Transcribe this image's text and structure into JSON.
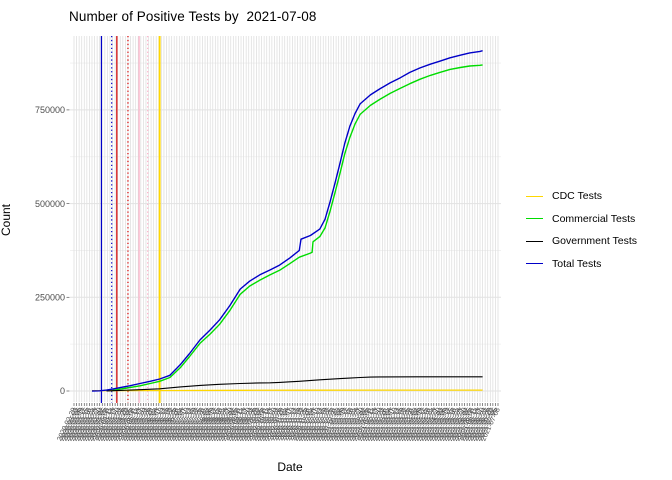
{
  "chart_data": {
    "type": "line",
    "title": "Number of Positive Tests by  2021-07-08",
    "xlabel": "Date",
    "ylabel": "Count",
    "y_ticks": [
      0,
      250000,
      500000,
      750000
    ],
    "y_tick_labels": [
      "0",
      "250000",
      "500000",
      "750000"
    ],
    "y_minor_ticks": [
      125000,
      375000,
      625000,
      875000
    ],
    "ylim": [
      -30000,
      945000
    ],
    "grid": true,
    "legend_position": "right",
    "x_axis": {
      "tick_start_date": "2020-02-29",
      "tick_end_date": "2021-07-08",
      "tick_step_days": 3,
      "tick_label_format": "YYYY-MM-DD",
      "tick_label_angle_deg": 65,
      "tick_labels_overlap": true
    },
    "series": [
      {
        "name": "CDC Tests",
        "color": "#FFD700",
        "width": 1.3,
        "points": [
          [
            21,
            700
          ],
          [
            60,
            1000
          ],
          [
            120,
            1400
          ],
          [
            200,
            1800
          ],
          [
            280,
            2100
          ],
          [
            360,
            2400
          ],
          [
            477,
            2500
          ]
        ]
      },
      {
        "name": "Commercial Tests",
        "color": "#00DC00",
        "width": 1.4,
        "points": [
          [
            45,
            1500
          ],
          [
            54,
            5000
          ],
          [
            65,
            9000
          ],
          [
            77,
            14000
          ],
          [
            89,
            20000
          ],
          [
            100,
            26000
          ],
          [
            112,
            36000
          ],
          [
            124,
            62000
          ],
          [
            135,
            92000
          ],
          [
            147,
            127000
          ],
          [
            159,
            152000
          ],
          [
            170,
            178000
          ],
          [
            182,
            215000
          ],
          [
            194,
            258000
          ],
          [
            205,
            280000
          ],
          [
            217,
            296000
          ],
          [
            229,
            310000
          ],
          [
            240,
            322000
          ],
          [
            252,
            340000
          ],
          [
            263,
            357000
          ],
          [
            276,
            368000
          ],
          [
            278,
            370000
          ],
          [
            279,
            398000
          ],
          [
            287,
            412000
          ],
          [
            293,
            435000
          ],
          [
            299,
            480000
          ],
          [
            305,
            532000
          ],
          [
            311,
            585000
          ],
          [
            316,
            632000
          ],
          [
            322,
            676000
          ],
          [
            328,
            712000
          ],
          [
            334,
            738000
          ],
          [
            346,
            762000
          ],
          [
            357,
            778000
          ],
          [
            369,
            794000
          ],
          [
            381,
            808000
          ],
          [
            392,
            820000
          ],
          [
            404,
            832000
          ],
          [
            416,
            842000
          ],
          [
            427,
            850000
          ],
          [
            439,
            858000
          ],
          [
            451,
            863000
          ],
          [
            462,
            867000
          ],
          [
            474,
            869000
          ],
          [
            477,
            870000
          ]
        ]
      },
      {
        "name": "Government Tests",
        "color": "#000000",
        "width": 1.1,
        "points": [
          [
            38,
            300
          ],
          [
            54,
            1500
          ],
          [
            77,
            3500
          ],
          [
            100,
            6000
          ],
          [
            124,
            11000
          ],
          [
            147,
            15000
          ],
          [
            170,
            18000
          ],
          [
            194,
            20000
          ],
          [
            217,
            21500
          ],
          [
            229,
            22000
          ],
          [
            240,
            23000
          ],
          [
            252,
            24500
          ],
          [
            263,
            26000
          ],
          [
            287,
            30000
          ],
          [
            299,
            31500
          ],
          [
            311,
            33000
          ],
          [
            322,
            34500
          ],
          [
            334,
            36000
          ],
          [
            346,
            37000
          ],
          [
            357,
            37500
          ],
          [
            400,
            37800
          ],
          [
            477,
            38000
          ]
        ]
      },
      {
        "name": "Total Tests",
        "color": "#0000C8",
        "width": 1.4,
        "points": [
          [
            21,
            0
          ],
          [
            30,
            500
          ],
          [
            38,
            2500
          ],
          [
            45,
            5000
          ],
          [
            54,
            9000
          ],
          [
            65,
            14000
          ],
          [
            77,
            20000
          ],
          [
            89,
            26000
          ],
          [
            100,
            32000
          ],
          [
            112,
            42000
          ],
          [
            124,
            70000
          ],
          [
            135,
            100000
          ],
          [
            147,
            136000
          ],
          [
            159,
            163000
          ],
          [
            170,
            190000
          ],
          [
            182,
            228000
          ],
          [
            194,
            272000
          ],
          [
            205,
            293000
          ],
          [
            217,
            310000
          ],
          [
            229,
            323000
          ],
          [
            240,
            336000
          ],
          [
            252,
            355000
          ],
          [
            263,
            375000
          ],
          [
            265,
            405000
          ],
          [
            276,
            415000
          ],
          [
            287,
            432000
          ],
          [
            293,
            458000
          ],
          [
            299,
            505000
          ],
          [
            305,
            558000
          ],
          [
            311,
            612000
          ],
          [
            316,
            660000
          ],
          [
            322,
            706000
          ],
          [
            328,
            740000
          ],
          [
            334,
            766000
          ],
          [
            346,
            790000
          ],
          [
            357,
            806000
          ],
          [
            369,
            822000
          ],
          [
            381,
            836000
          ],
          [
            392,
            850000
          ],
          [
            404,
            862000
          ],
          [
            416,
            872000
          ],
          [
            427,
            880000
          ],
          [
            439,
            889000
          ],
          [
            451,
            896000
          ],
          [
            462,
            902000
          ],
          [
            474,
            906000
          ],
          [
            477,
            908000
          ]
        ]
      }
    ],
    "vlines": [
      {
        "day": 32,
        "color": "#0000C8",
        "style": "solid",
        "width": 1.2
      },
      {
        "day": 44,
        "color": "#0000C8",
        "style": "dotted",
        "width": 1.2
      },
      {
        "day": 50,
        "color": "#D40000",
        "style": "solid",
        "width": 1.2
      },
      {
        "day": 63,
        "color": "#D40000",
        "style": "dotted",
        "width": 1.2
      },
      {
        "day": 76,
        "color": "#FFB0C8",
        "style": "solid",
        "width": 1.2
      },
      {
        "day": 86,
        "color": "#FFB0C8",
        "style": "dotted",
        "width": 1.2
      },
      {
        "day": 100,
        "color": "#FFD700",
        "style": "solid",
        "width": 1.9
      }
    ],
    "colors": {
      "grid_vertical": "#dedede",
      "grid_major_h": "#e2e2e2",
      "grid_minor_h": "#efefef",
      "axis_tick": "#555555",
      "tick_label": "#4d4d4d",
      "text": "#000000"
    }
  }
}
